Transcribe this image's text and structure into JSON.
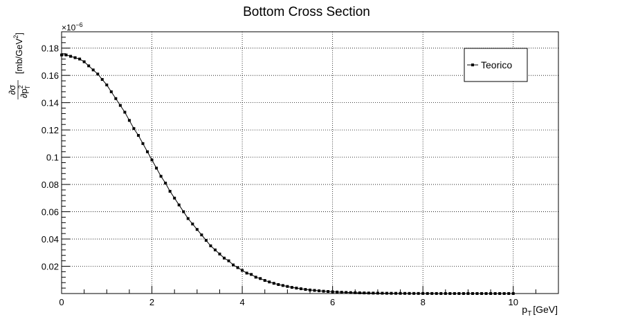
{
  "chart_data": {
    "type": "scatter",
    "title": "Bottom Cross Section",
    "xlabel_main": "p",
    "xlabel_sub": "T",
    "xlabel_unit": "[GeV]",
    "ylabel_num": "∂σ",
    "ylabel_den_main": "∂p",
    "ylabel_den_sup": "2",
    "ylabel_den_sub": "T",
    "ylabel_unit_main": "[mb/GeV",
    "ylabel_unit_sup": "2",
    "ylabel_unit_end": "]",
    "y_multiplier_base": "×10",
    "y_multiplier_exp": "−6",
    "xlim": [
      0,
      11
    ],
    "ylim": [
      0,
      0.192
    ],
    "grid": true,
    "xticks": [
      0,
      2,
      4,
      6,
      8,
      10
    ],
    "xtick_labels": [
      "0",
      "2",
      "4",
      "6",
      "8",
      "10"
    ],
    "yticks": [
      0.02,
      0.04,
      0.06,
      0.08,
      0.1,
      0.12,
      0.14,
      0.16,
      0.18
    ],
    "ytick_labels": [
      "0.02",
      "0.04",
      "0.06",
      "0.08",
      "0.1",
      "0.12",
      "0.14",
      "0.16",
      "0.18"
    ],
    "legend_position": "top-right",
    "series": [
      {
        "name": "Teorico",
        "color": "#000000",
        "x": [
          0.0,
          0.1,
          0.2,
          0.3,
          0.4,
          0.5,
          0.6,
          0.7,
          0.8,
          0.9,
          1.0,
          1.1,
          1.2,
          1.3,
          1.4,
          1.5,
          1.6,
          1.7,
          1.8,
          1.9,
          2.0,
          2.1,
          2.2,
          2.3,
          2.4,
          2.5,
          2.6,
          2.7,
          2.8,
          2.9,
          3.0,
          3.1,
          3.2,
          3.3,
          3.4,
          3.5,
          3.6,
          3.7,
          3.8,
          3.9,
          4.0,
          4.1,
          4.2,
          4.3,
          4.4,
          4.5,
          4.6,
          4.7,
          4.8,
          4.9,
          5.0,
          5.1,
          5.2,
          5.3,
          5.4,
          5.5,
          5.6,
          5.7,
          5.8,
          5.9,
          6.0,
          6.1,
          6.2,
          6.3,
          6.4,
          6.5,
          6.6,
          6.7,
          6.8,
          6.9,
          7.0,
          7.1,
          7.2,
          7.3,
          7.4,
          7.5,
          7.6,
          7.7,
          7.8,
          7.9,
          8.0,
          8.1,
          8.2,
          8.3,
          8.4,
          8.5,
          8.6,
          8.7,
          8.8,
          8.9,
          9.0,
          9.1,
          9.2,
          9.3,
          9.4,
          9.5,
          9.6,
          9.7,
          9.8,
          9.9,
          10.0
        ],
        "y": [
          0.175,
          0.175,
          0.174,
          0.173,
          0.172,
          0.17,
          0.167,
          0.164,
          0.161,
          0.157,
          0.153,
          0.148,
          0.143,
          0.138,
          0.133,
          0.127,
          0.121,
          0.116,
          0.11,
          0.104,
          0.098,
          0.092,
          0.086,
          0.081,
          0.075,
          0.07,
          0.065,
          0.06,
          0.055,
          0.051,
          0.047,
          0.043,
          0.039,
          0.035,
          0.032,
          0.029,
          0.026,
          0.024,
          0.021,
          0.019,
          0.017,
          0.015,
          0.014,
          0.012,
          0.011,
          0.0096,
          0.0085,
          0.0075,
          0.0066,
          0.0059,
          0.0052,
          0.0045,
          0.004,
          0.0035,
          0.003,
          0.0026,
          0.0023,
          0.002,
          0.0017,
          0.0015,
          0.0013,
          0.0011,
          0.00096,
          0.00082,
          0.0007,
          0.0006,
          0.00051,
          0.00044,
          0.00037,
          0.00032,
          0.00027,
          0.00023,
          0.00019,
          0.00016,
          0.00014,
          0.00012,
          0.0001,
          8.5e-05,
          7.1e-05,
          6e-05,
          5e-05,
          4.2e-05,
          3.5e-05,
          3e-05,
          2.5e-05,
          2.1e-05,
          1.7e-05,
          1.4e-05,
          1.2e-05,
          1e-05,
          8.4e-06,
          7e-06,
          5.8e-06,
          4.8e-06,
          4e-06,
          3.3e-06,
          2.7e-06,
          2.2e-06,
          1.8e-06,
          1.5e-06,
          1.2e-06
        ]
      }
    ]
  }
}
